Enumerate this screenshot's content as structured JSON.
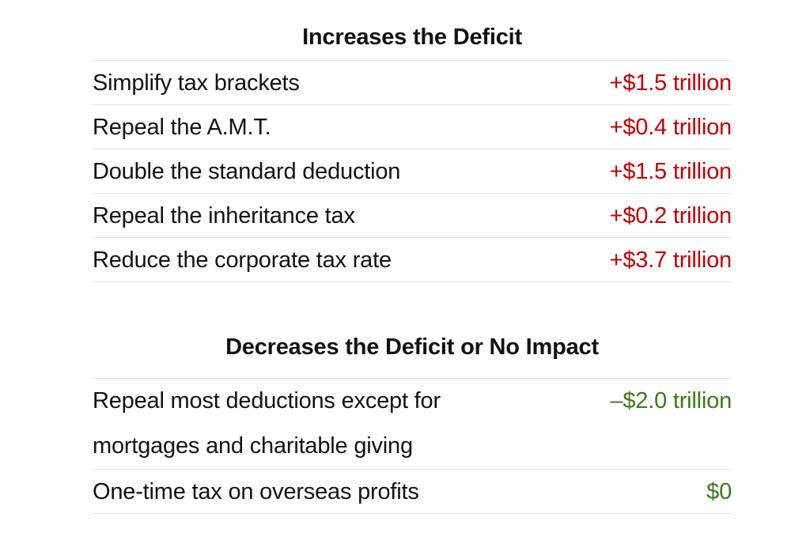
{
  "colors": {
    "increase": "#c00000",
    "decrease": "#3a7a1a",
    "text": "#121212",
    "divider": "#e2e2e2"
  },
  "increases": {
    "title": "Increases the Deficit",
    "rows": [
      {
        "label": "Simplify tax brackets",
        "value": "+$1.5 trillion"
      },
      {
        "label": "Repeal the A.M.T.",
        "value": "+$0.4 trillion"
      },
      {
        "label": "Double the standard deduction",
        "value": "+$1.5 trillion"
      },
      {
        "label": "Repeal the inheritance tax",
        "value": "+$0.2 trillion"
      },
      {
        "label": "Reduce the corporate tax rate",
        "value": "+$3.7 trillion"
      }
    ]
  },
  "decreases": {
    "title": "Decreases the Deficit or No Impact",
    "rows": [
      {
        "label": "Repeal most deductions except for mortgages and charitable giving",
        "value": "–$2.0 trillion"
      },
      {
        "label": "One-time tax on overseas profits",
        "value": "$0"
      }
    ]
  }
}
